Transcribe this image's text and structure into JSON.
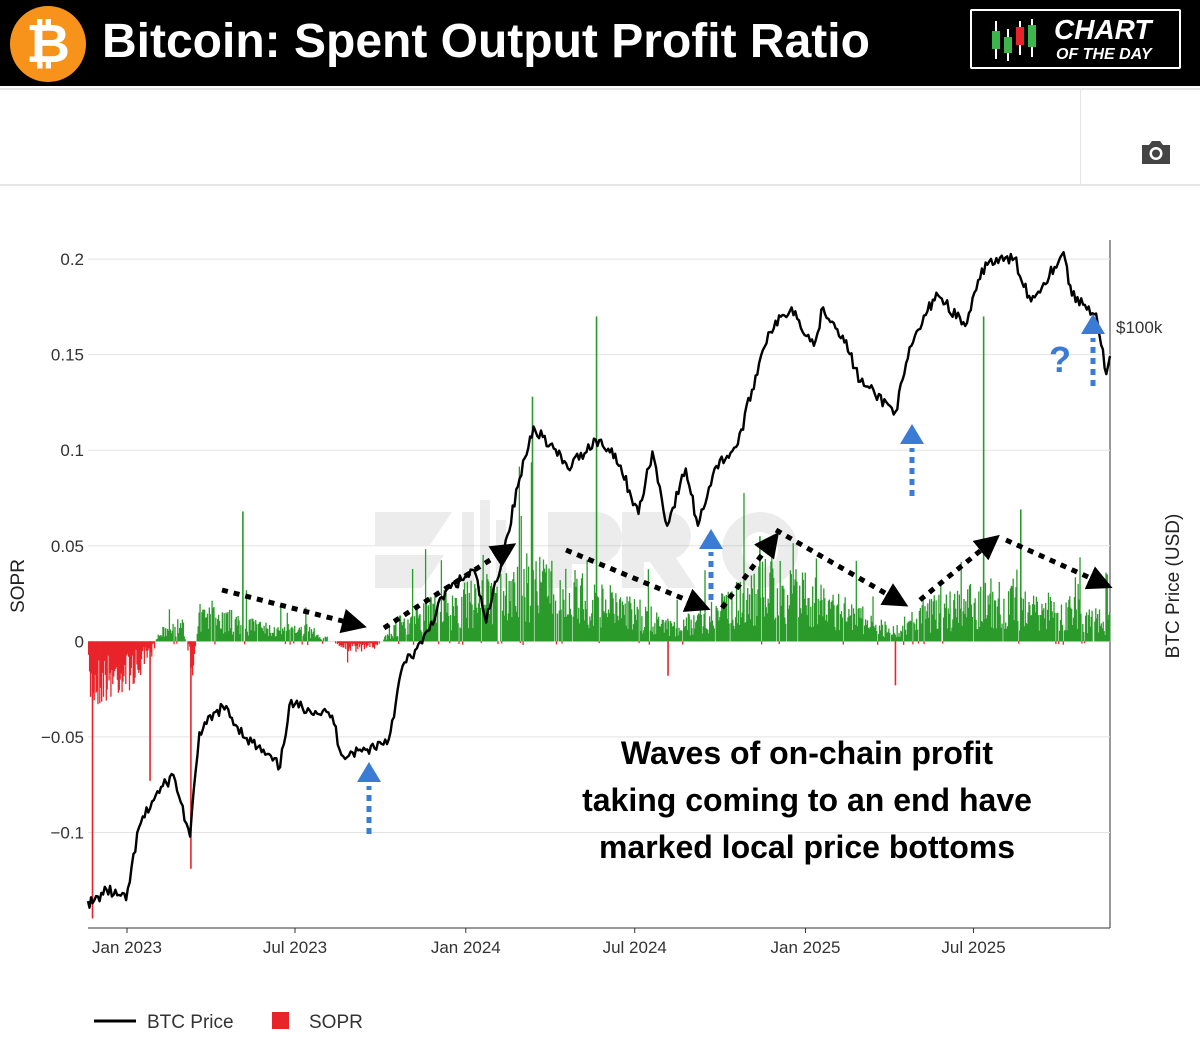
{
  "header": {
    "logo_symbol": "₿",
    "title": "Bitcoin: Spent Output Profit Ratio",
    "badge_line1": "CHART",
    "badge_line2": "OF THE DAY",
    "logo_color": "#f7931a",
    "background_color": "#000000"
  },
  "toolbar": {
    "camera_icon": "camera-icon"
  },
  "colors": {
    "sopr_positive": "#2a9a2a",
    "sopr_negative": "#e8242a",
    "price_line": "#000000",
    "arrow_blue": "#3a7bd5",
    "trend_arrow": "#000000"
  },
  "chart_data": {
    "type": "bar+line",
    "title": "Bitcoin: Spent Output Profit Ratio",
    "xlabel": "",
    "ylabel": "SOPR",
    "y2label": "BTC Price (USD)",
    "ylim": [
      -0.15,
      0.21
    ],
    "yticks": [
      0.2,
      0.15,
      0.1,
      0.05,
      0,
      -0.05,
      -0.1
    ],
    "ytick_labels": [
      "0.2",
      "0.15",
      "0.1",
      "0.05",
      "0",
      "−0.05",
      "−0.1"
    ],
    "xlim": [
      "2022-11-20",
      "2025-11-25"
    ],
    "xticks": [
      "2023-01-01",
      "2023-07-01",
      "2024-01-01",
      "2024-07-01",
      "2025-01-01",
      "2025-07-01"
    ],
    "xtick_labels": [
      "Jan 2023",
      "Jul 2023",
      "Jan 2024",
      "Jul 2024",
      "Jan 2025",
      "Jul 2025"
    ],
    "y2_label_text": "$100k",
    "y2_label_value": 100000,
    "y2_scale": "log",
    "legend": {
      "position": "bottom-left",
      "entries": [
        "BTC Price",
        "SOPR"
      ]
    },
    "series": [
      {
        "name": "BTC Price",
        "type": "line",
        "points": [
          [
            "2022-11-20",
            16500
          ],
          [
            "2022-11-25",
            16400
          ],
          [
            "2022-12-10",
            17100
          ],
          [
            "2022-12-31",
            16550
          ],
          [
            "2023-01-14",
            20800
          ],
          [
            "2023-02-01",
            23000
          ],
          [
            "2023-02-20",
            24500
          ],
          [
            "2023-03-10",
            20200
          ],
          [
            "2023-03-20",
            28000
          ],
          [
            "2023-04-14",
            30400
          ],
          [
            "2023-05-10",
            27500
          ],
          [
            "2023-06-15",
            25100
          ],
          [
            "2023-06-25",
            30500
          ],
          [
            "2023-07-15",
            30200
          ],
          [
            "2023-08-10",
            29500
          ],
          [
            "2023-08-20",
            26100
          ],
          [
            "2023-09-15",
            26500
          ],
          [
            "2023-10-10",
            27400
          ],
          [
            "2023-10-25",
            34500
          ],
          [
            "2023-11-15",
            37000
          ],
          [
            "2023-12-10",
            43500
          ],
          [
            "2024-01-10",
            46500
          ],
          [
            "2024-01-23",
            39500
          ],
          [
            "2024-02-15",
            52000
          ],
          [
            "2024-02-28",
            62000
          ],
          [
            "2024-03-14",
            73000
          ],
          [
            "2024-04-01",
            69000
          ],
          [
            "2024-04-20",
            64000
          ],
          [
            "2024-05-20",
            70000
          ],
          [
            "2024-06-10",
            67000
          ],
          [
            "2024-07-05",
            55500
          ],
          [
            "2024-07-20",
            67500
          ],
          [
            "2024-08-05",
            53500
          ],
          [
            "2024-08-25",
            64000
          ],
          [
            "2024-09-07",
            53500
          ],
          [
            "2024-09-25",
            64000
          ],
          [
            "2024-10-20",
            69000
          ],
          [
            "2024-11-12",
            89000
          ],
          [
            "2024-11-22",
            98000
          ],
          [
            "2024-12-17",
            106000
          ],
          [
            "2025-01-10",
            94000
          ],
          [
            "2025-01-20",
            106000
          ],
          [
            "2025-02-10",
            97000
          ],
          [
            "2025-03-01",
            84000
          ],
          [
            "2025-04-08",
            76500
          ],
          [
            "2025-04-25",
            94000
          ],
          [
            "2025-05-22",
            111000
          ],
          [
            "2025-06-22",
            100000
          ],
          [
            "2025-07-14",
            122000
          ],
          [
            "2025-08-14",
            123500
          ],
          [
            "2025-09-01",
            108000
          ],
          [
            "2025-10-06",
            126000
          ],
          [
            "2025-10-15",
            110000
          ],
          [
            "2025-11-10",
            104000
          ],
          [
            "2025-11-21",
            86000
          ],
          [
            "2025-11-25",
            91000
          ]
        ]
      },
      {
        "name": "SOPR",
        "type": "bar",
        "notable_points": [
          [
            "2022-11-24",
            -0.145
          ],
          [
            "2023-01-25",
            -0.073
          ],
          [
            "2023-03-10",
            -0.119
          ],
          [
            "2023-05-05",
            0.068
          ],
          [
            "2024-03-12",
            0.128
          ],
          [
            "2024-05-20",
            0.17
          ],
          [
            "2024-08-05",
            -0.018
          ],
          [
            "2024-11-12",
            0.055
          ],
          [
            "2025-04-07",
            -0.023
          ],
          [
            "2025-07-11",
            0.17
          ],
          [
            "2025-08-20",
            0.069
          ],
          [
            "2025-11-21",
            0.035
          ]
        ]
      }
    ],
    "annotations": [
      {
        "text": [
          "Waves of on-chain profit",
          "taking coming to an end have",
          "marked local price bottoms"
        ]
      },
      {
        "text": "?"
      }
    ]
  }
}
